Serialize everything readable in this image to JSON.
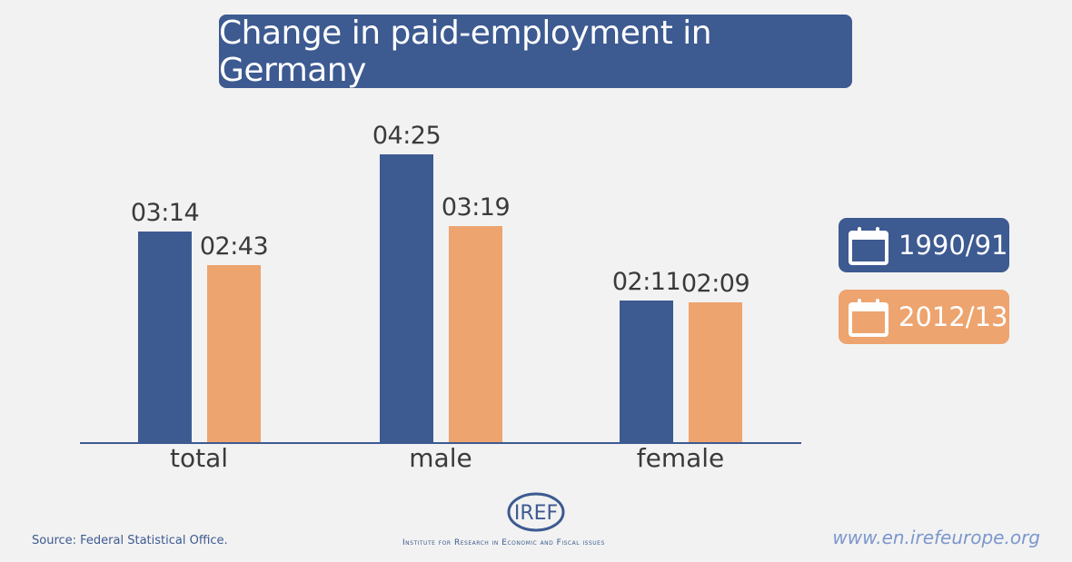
{
  "chart_data": {
    "type": "bar",
    "title": "Change in paid-employment in Germany",
    "categories": [
      "total",
      "male",
      "female"
    ],
    "series": [
      {
        "name": "1990/91",
        "color": "#3d5a91",
        "values": [
          194,
          265,
          131
        ],
        "labels": [
          "03:14",
          "04:25",
          "02:11"
        ]
      },
      {
        "name": "2012/13",
        "color": "#eda46f",
        "values": [
          163,
          199,
          129
        ],
        "labels": [
          "02:43",
          "03:19",
          "02:09"
        ]
      }
    ],
    "units": "minutes (hh:mm)",
    "ylim": [
      0,
      265
    ],
    "legend": "right"
  },
  "footer": {
    "source": "Source: Federal Statistical Office.",
    "logo_text": "IREF",
    "institute": "Institute for Research in Economic and Fiscal issues",
    "url": "www.en.irefeurope.org"
  }
}
